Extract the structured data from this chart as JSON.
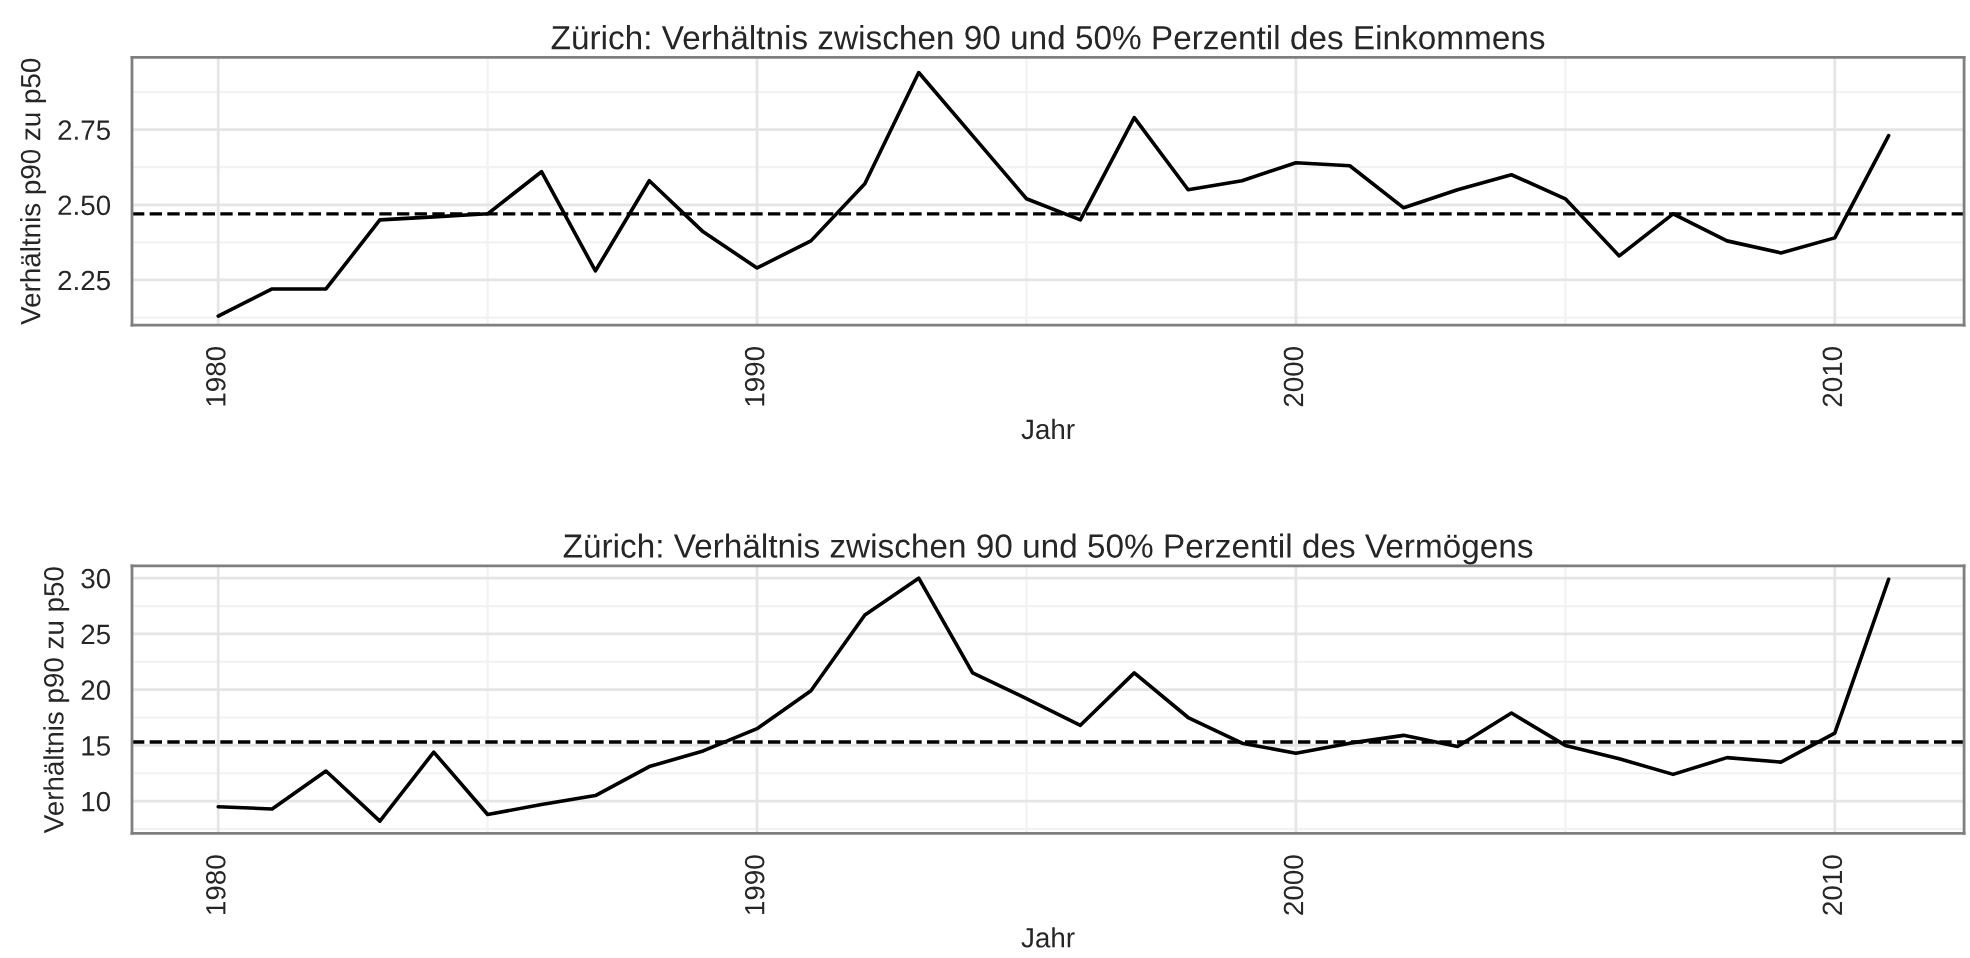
{
  "chart_data": [
    {
      "type": "line",
      "title": "Zürich: Verhältnis zwischen 90 und 50% Perzentil des Einkommens",
      "xlabel": "Jahr",
      "ylabel": "Verhältnis p90 zu p50",
      "x": [
        1980,
        1981,
        1982,
        1983,
        1984,
        1985,
        1986,
        1987,
        1988,
        1989,
        1990,
        1991,
        1992,
        1993,
        1994,
        1995,
        1996,
        1997,
        1998,
        1999,
        2000,
        2001,
        2002,
        2003,
        2004,
        2005,
        2006,
        2007,
        2008,
        2009,
        2010,
        2011
      ],
      "series": [
        {
          "color": "#000000",
          "values": [
            2.13,
            2.22,
            2.22,
            2.45,
            2.46,
            2.47,
            2.61,
            2.28,
            2.58,
            2.41,
            2.29,
            2.38,
            2.57,
            2.94,
            2.73,
            2.52,
            2.45,
            2.79,
            2.55,
            2.58,
            2.64,
            2.63,
            2.49,
            2.55,
            2.6,
            2.52,
            2.33,
            2.47,
            2.38,
            2.34,
            2.39,
            2.73
          ]
        }
      ],
      "xlim": [
        1978.4,
        2012.4
      ],
      "xticks": [
        1980,
        1990,
        2000,
        2010
      ],
      "ylim": [
        2.1,
        2.99
      ],
      "yticks": [
        {
          "value": 2.25,
          "label": "2.25"
        },
        {
          "value": 2.5,
          "label": "2.50"
        },
        {
          "value": 2.75,
          "label": "2.75"
        }
      ],
      "ref_lines": [
        {
          "axis": "y",
          "value": 2.47,
          "color": "#000000",
          "line_style": "dashed"
        }
      ],
      "grid": true,
      "line_style": "solid",
      "marker": "none"
    },
    {
      "type": "line",
      "title": "Zürich: Verhältnis zwischen 90 und 50% Perzentil des Vermögens",
      "xlabel": "Jahr",
      "ylabel": "Verhältnis p90 zu p50",
      "x": [
        1980,
        1981,
        1982,
        1983,
        1984,
        1985,
        1986,
        1987,
        1988,
        1989,
        1990,
        1991,
        1992,
        1993,
        1994,
        1995,
        1996,
        1997,
        1998,
        1999,
        2000,
        2001,
        2002,
        2003,
        2004,
        2005,
        2006,
        2007,
        2008,
        2009,
        2010,
        2011
      ],
      "series": [
        {
          "color": "#000000",
          "values": [
            9.5,
            9.3,
            12.7,
            8.2,
            14.4,
            8.8,
            9.7,
            10.5,
            13.1,
            14.5,
            16.5,
            19.9,
            26.7,
            30.0,
            21.5,
            19.2,
            16.8,
            21.5,
            17.5,
            15.2,
            14.3,
            15.2,
            15.9,
            14.9,
            17.9,
            15.0,
            13.8,
            12.4,
            13.9,
            13.5,
            16.1,
            29.9
          ]
        }
      ],
      "xlim": [
        1978.4,
        2012.4
      ],
      "xticks": [
        1980,
        1990,
        2000,
        2010
      ],
      "ylim": [
        7.1,
        31.1
      ],
      "yticks": [
        10,
        15,
        20,
        25,
        30
      ],
      "ref_lines": [
        {
          "axis": "y",
          "value": 15.3,
          "color": "#000000",
          "line_style": "dashed"
        }
      ],
      "grid": true,
      "line_style": "solid",
      "marker": "none"
    }
  ]
}
